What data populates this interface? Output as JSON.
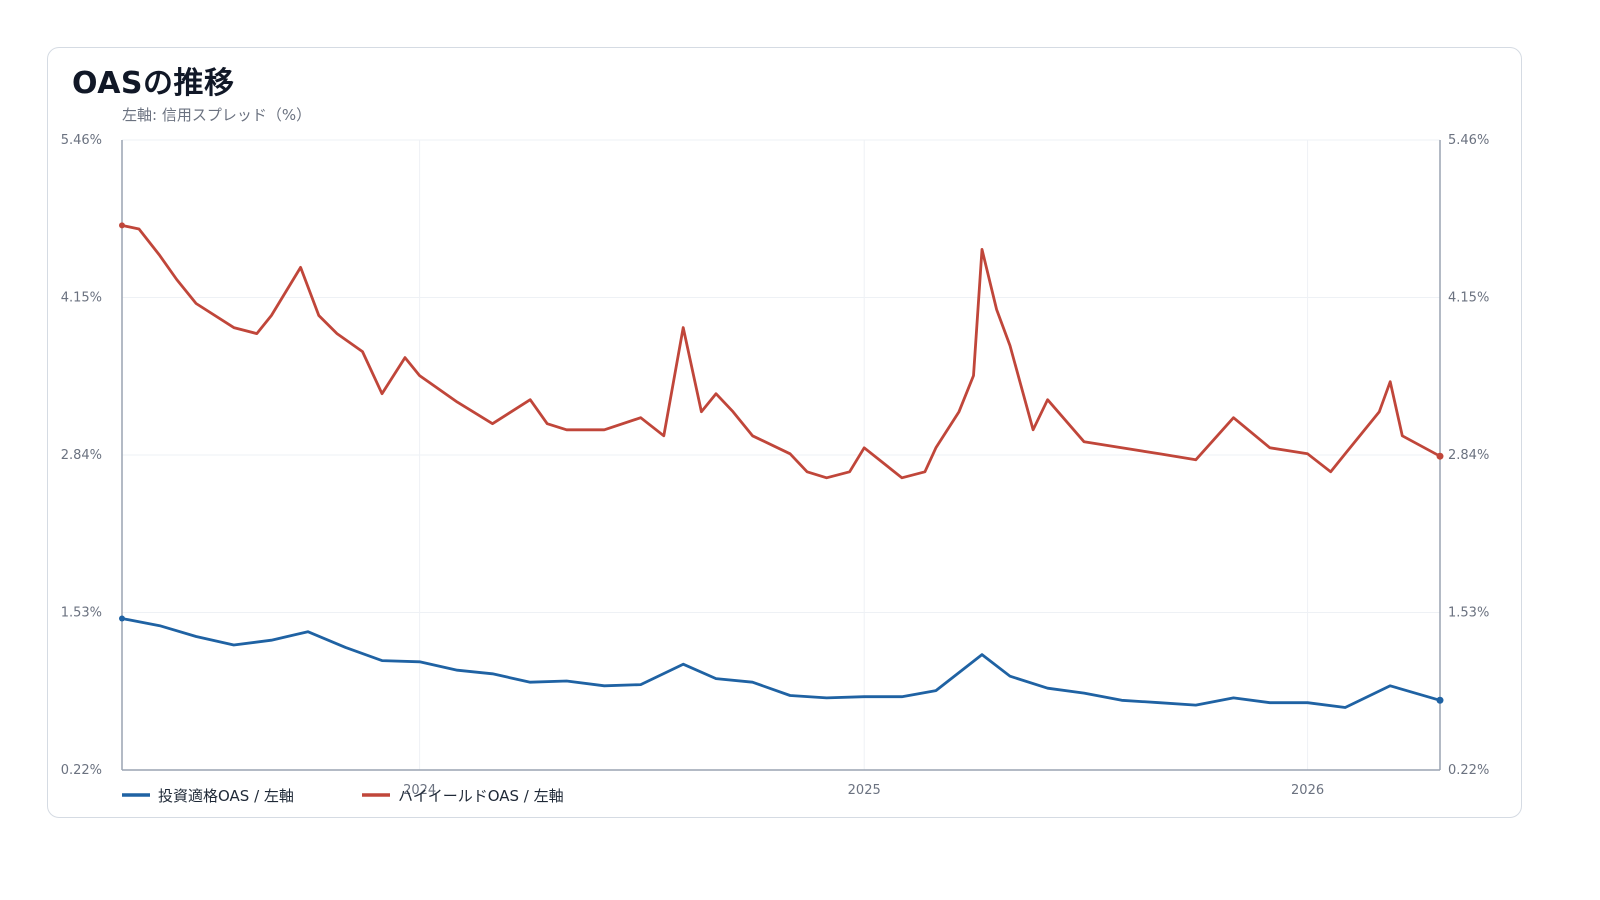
{
  "chart_data": {
    "type": "line",
    "title": "OASの推移",
    "subtitle": "左軸: 信用スプレッド（%）",
    "ylabel": "",
    "xlabel": "",
    "y_ticks": [
      "5.46%",
      "4.15%",
      "2.84%",
      "1.53%",
      "0.22%"
    ],
    "ylim": [
      0.22,
      5.46
    ],
    "x_ticks": [
      "2024",
      "2025",
      "2026"
    ],
    "x_tick_dates": [
      "2024-01-01",
      "2025-01-01",
      "2026-01-01"
    ],
    "x_range": [
      "2023-05-01",
      "2026-04-20"
    ],
    "grid": true,
    "legend_position": "bottom-left",
    "series": [
      {
        "name": "投資適格OAS / 左軸",
        "color": "#1f62a3",
        "x": [
          "2023-05-01",
          "2023-06-01",
          "2023-07-01",
          "2023-08-01",
          "2023-09-01",
          "2023-10-01",
          "2023-11-01",
          "2023-12-01",
          "2024-01-01",
          "2024-02-01",
          "2024-03-01",
          "2024-04-01",
          "2024-05-01",
          "2024-06-01",
          "2024-07-01",
          "2024-08-05",
          "2024-09-01",
          "2024-10-01",
          "2024-11-01",
          "2024-12-01",
          "2025-01-01",
          "2025-02-01",
          "2025-03-01",
          "2025-04-08",
          "2025-05-01",
          "2025-06-01",
          "2025-07-01",
          "2025-08-01",
          "2025-09-01",
          "2025-10-01",
          "2025-11-01",
          "2025-12-01",
          "2026-01-01",
          "2026-02-01",
          "2026-03-10",
          "2026-04-20"
        ],
        "values": [
          1.48,
          1.42,
          1.33,
          1.26,
          1.3,
          1.37,
          1.24,
          1.13,
          1.12,
          1.05,
          1.02,
          0.95,
          0.96,
          0.92,
          0.93,
          1.1,
          0.98,
          0.95,
          0.84,
          0.82,
          0.83,
          0.83,
          0.88,
          1.18,
          1.0,
          0.9,
          0.86,
          0.8,
          0.78,
          0.76,
          0.82,
          0.78,
          0.78,
          0.74,
          0.92,
          0.8
        ]
      },
      {
        "name": "ハイイールドOAS / 左軸",
        "color": "#c0463a",
        "x": [
          "2023-05-01",
          "2023-05-15",
          "2023-06-01",
          "2023-06-15",
          "2023-07-01",
          "2023-08-01",
          "2023-08-20",
          "2023-09-01",
          "2023-09-25",
          "2023-10-10",
          "2023-10-25",
          "2023-11-15",
          "2023-12-01",
          "2023-12-20",
          "2024-01-01",
          "2024-02-01",
          "2024-03-01",
          "2024-04-01",
          "2024-04-15",
          "2024-05-01",
          "2024-06-01",
          "2024-07-01",
          "2024-07-20",
          "2024-08-05",
          "2024-08-20",
          "2024-09-01",
          "2024-09-15",
          "2024-10-01",
          "2024-11-01",
          "2024-11-15",
          "2024-12-01",
          "2024-12-20",
          "2025-01-01",
          "2025-02-01",
          "2025-02-20",
          "2025-03-01",
          "2025-03-20",
          "2025-04-01",
          "2025-04-08",
          "2025-04-20",
          "2025-05-01",
          "2025-05-20",
          "2025-06-01",
          "2025-07-01",
          "2025-08-01",
          "2025-09-01",
          "2025-10-01",
          "2025-11-01",
          "2025-12-01",
          "2026-01-01",
          "2026-01-20",
          "2026-02-01",
          "2026-03-01",
          "2026-03-10",
          "2026-03-20",
          "2026-04-20"
        ],
        "values": [
          4.75,
          4.72,
          4.5,
          4.3,
          4.1,
          3.9,
          3.85,
          4.0,
          4.4,
          4.0,
          3.85,
          3.7,
          3.35,
          3.65,
          3.5,
          3.28,
          3.1,
          3.3,
          3.1,
          3.05,
          3.05,
          3.15,
          3.0,
          3.9,
          3.2,
          3.35,
          3.2,
          3.0,
          2.85,
          2.7,
          2.65,
          2.7,
          2.9,
          2.65,
          2.7,
          2.9,
          3.2,
          3.5,
          4.55,
          4.05,
          3.75,
          3.05,
          3.3,
          2.95,
          2.9,
          2.85,
          2.8,
          3.15,
          2.9,
          2.85,
          2.7,
          2.85,
          3.2,
          3.45,
          3.0,
          2.83
        ]
      }
    ]
  }
}
